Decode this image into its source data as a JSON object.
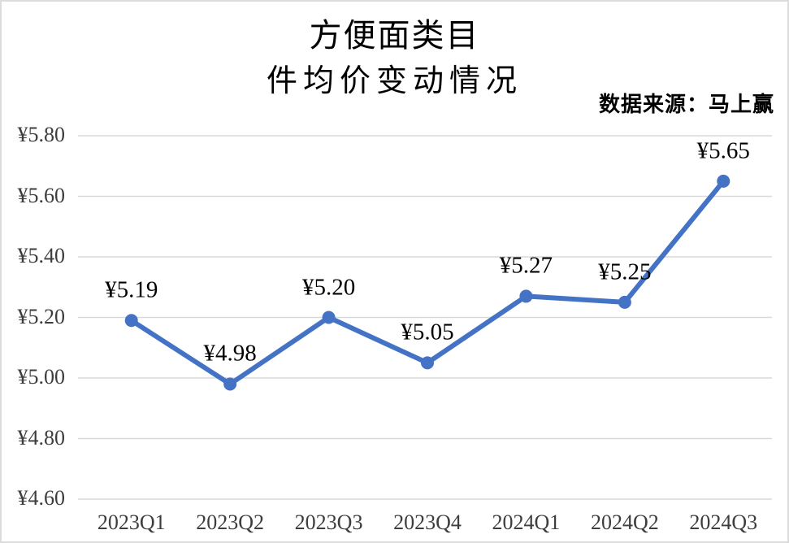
{
  "title": {
    "line1": "方便面类目",
    "line2": "件均价变动情况"
  },
  "source_note": "数据来源：马上赢",
  "chart_data": {
    "type": "line",
    "title": "方便面类目 件均价变动情况",
    "categories": [
      "2023Q1",
      "2023Q2",
      "2023Q3",
      "2023Q4",
      "2024Q1",
      "2024Q2",
      "2024Q3"
    ],
    "values": [
      5.19,
      4.98,
      5.2,
      5.05,
      5.27,
      5.25,
      5.65
    ],
    "data_labels": [
      "¥5.19",
      "¥4.98",
      "¥5.20",
      "¥5.05",
      "¥5.27",
      "¥5.25",
      "¥5.65"
    ],
    "y_tick_values": [
      5.8,
      5.6,
      5.4,
      5.2,
      5.0,
      4.8,
      4.6
    ],
    "y_tick_labels": [
      "¥5.80",
      "¥5.60",
      "¥5.40",
      "¥5.20",
      "¥5.00",
      "¥4.80",
      "¥4.60"
    ],
    "ylim": [
      4.6,
      5.8
    ],
    "xlabel": "",
    "ylabel": "",
    "grid": "horizontal",
    "legend": "none",
    "line_color": "#4472C4",
    "marker_color": "#4472C4",
    "grid_color": "#d9d9d9",
    "axis_text_color": "#3d3d3d",
    "label_text_color": "#000000"
  }
}
